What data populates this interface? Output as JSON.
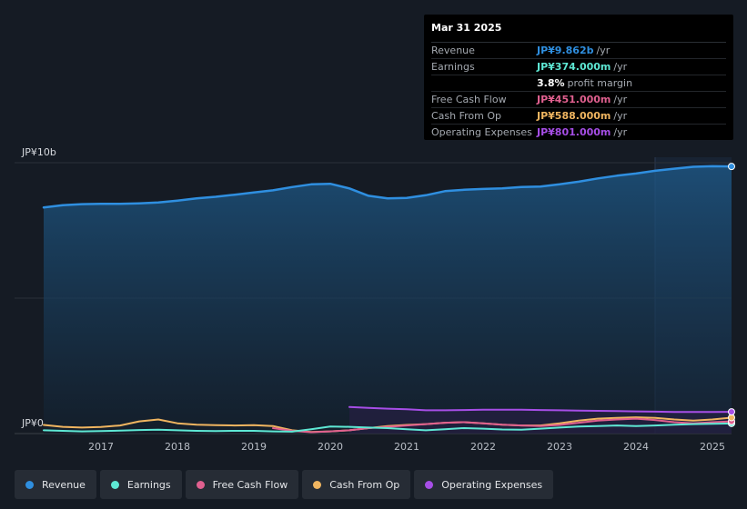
{
  "tooltip": {
    "date": "Mar 31 2025",
    "rows": [
      {
        "label": "Revenue",
        "value": "JP¥9.862b",
        "unit": "/yr",
        "color": "#2f8fe0"
      },
      {
        "label": "Earnings",
        "value": "JP¥374.000m",
        "unit": "/yr",
        "color": "#5ee8d4"
      },
      {
        "label": "",
        "value": "3.8%",
        "unit": "profit margin",
        "color": "#ffffff"
      },
      {
        "label": "Free Cash Flow",
        "value": "JP¥451.000m",
        "unit": "/yr",
        "color": "#e0608f"
      },
      {
        "label": "Cash From Op",
        "value": "JP¥588.000m",
        "unit": "/yr",
        "color": "#f0b560"
      },
      {
        "label": "Operating Expenses",
        "value": "JP¥801.000m",
        "unit": "/yr",
        "color": "#a64ee6"
      }
    ]
  },
  "legend": [
    {
      "label": "Revenue",
      "color": "#2f8fe0"
    },
    {
      "label": "Earnings",
      "color": "#5ee8d4"
    },
    {
      "label": "Free Cash Flow",
      "color": "#e0608f"
    },
    {
      "label": "Cash From Op",
      "color": "#f0b560"
    },
    {
      "label": "Operating Expenses",
      "color": "#a64ee6"
    }
  ],
  "chart_data": {
    "type": "area",
    "y_unit": "JP¥ billions",
    "ylim": [
      0,
      10
    ],
    "y_tick_labels": [
      {
        "value": 10,
        "label": "JP¥10b"
      },
      {
        "value": 0,
        "label": "JP¥0"
      }
    ],
    "xlim": [
      2016.25,
      2025.25
    ],
    "x_tick_labels": [
      "2017",
      "2018",
      "2019",
      "2020",
      "2021",
      "2022",
      "2023",
      "2024",
      "2025"
    ],
    "x_ticks": [
      2017,
      2018,
      2019,
      2020,
      2021,
      2022,
      2023,
      2024,
      2025
    ],
    "forecast_start": 2024.25,
    "series": [
      {
        "name": "Revenue",
        "color": "#2f8fe0",
        "fill": true,
        "x": [
          2016.25,
          2016.5,
          2016.75,
          2017.0,
          2017.25,
          2017.5,
          2017.75,
          2018.0,
          2018.25,
          2018.5,
          2018.75,
          2019.0,
          2019.25,
          2019.5,
          2019.75,
          2020.0,
          2020.25,
          2020.5,
          2020.75,
          2021.0,
          2021.25,
          2021.5,
          2021.75,
          2022.0,
          2022.25,
          2022.5,
          2022.75,
          2023.0,
          2023.25,
          2023.5,
          2023.75,
          2024.0,
          2024.25,
          2024.5,
          2024.75,
          2025.0,
          2025.25
        ],
        "y": [
          8.35,
          8.43,
          8.47,
          8.48,
          8.48,
          8.5,
          8.53,
          8.6,
          8.68,
          8.74,
          8.82,
          8.9,
          8.98,
          9.1,
          9.2,
          9.22,
          9.05,
          8.78,
          8.68,
          8.7,
          8.8,
          8.95,
          9.0,
          9.03,
          9.05,
          9.1,
          9.12,
          9.2,
          9.3,
          9.42,
          9.52,
          9.6,
          9.7,
          9.78,
          9.85,
          9.87,
          9.862
        ]
      },
      {
        "name": "Earnings",
        "color": "#5ee8d4",
        "fill": false,
        "x": [
          2016.25,
          2016.5,
          2016.75,
          2017.0,
          2017.25,
          2017.5,
          2017.75,
          2018.0,
          2018.25,
          2018.5,
          2018.75,
          2019.0,
          2019.25,
          2019.5,
          2019.75,
          2020.0,
          2020.25,
          2020.5,
          2020.75,
          2021.0,
          2021.25,
          2021.5,
          2021.75,
          2022.0,
          2022.25,
          2022.5,
          2022.75,
          2023.0,
          2023.25,
          2023.5,
          2023.75,
          2024.0,
          2024.25,
          2024.5,
          2024.75,
          2025.0,
          2025.25
        ],
        "y": [
          0.12,
          0.1,
          0.08,
          0.09,
          0.11,
          0.13,
          0.14,
          0.12,
          0.1,
          0.09,
          0.1,
          0.1,
          0.08,
          0.07,
          0.16,
          0.26,
          0.25,
          0.22,
          0.2,
          0.16,
          0.12,
          0.16,
          0.2,
          0.18,
          0.15,
          0.14,
          0.18,
          0.22,
          0.26,
          0.28,
          0.3,
          0.28,
          0.3,
          0.33,
          0.35,
          0.36,
          0.374
        ]
      },
      {
        "name": "Free Cash Flow",
        "color": "#e0608f",
        "fill": false,
        "x": [
          2019.25,
          2019.5,
          2019.75,
          2020.0,
          2020.25,
          2020.5,
          2020.75,
          2021.0,
          2021.25,
          2021.5,
          2021.75,
          2022.0,
          2022.25,
          2022.5,
          2022.75,
          2023.0,
          2023.25,
          2023.5,
          2023.75,
          2024.0,
          2024.25,
          2024.5,
          2024.75,
          2025.0,
          2025.25
        ],
        "y": [
          0.2,
          0.1,
          0.05,
          0.08,
          0.12,
          0.2,
          0.25,
          0.3,
          0.35,
          0.4,
          0.42,
          0.38,
          0.33,
          0.3,
          0.28,
          0.32,
          0.4,
          0.48,
          0.52,
          0.55,
          0.5,
          0.42,
          0.38,
          0.42,
          0.451
        ]
      },
      {
        "name": "Cash From Op",
        "color": "#f0b560",
        "fill": false,
        "x": [
          2016.25,
          2016.5,
          2016.75,
          2017.0,
          2017.25,
          2017.5,
          2017.75,
          2018.0,
          2018.25,
          2018.5,
          2018.75,
          2019.0,
          2019.25,
          2019.5,
          2019.75,
          2020.0,
          2020.25,
          2020.5,
          2020.75,
          2021.0,
          2021.25,
          2021.5,
          2021.75,
          2022.0,
          2022.25,
          2022.5,
          2022.75,
          2023.0,
          2023.25,
          2023.5,
          2023.75,
          2024.0,
          2024.25,
          2024.5,
          2024.75,
          2025.0,
          2025.25
        ],
        "y": [
          0.32,
          0.25,
          0.22,
          0.24,
          0.3,
          0.45,
          0.52,
          0.38,
          0.33,
          0.31,
          0.3,
          0.31,
          0.28,
          0.12,
          0.06,
          0.08,
          0.12,
          0.2,
          0.28,
          0.32,
          0.35,
          0.4,
          0.42,
          0.38,
          0.33,
          0.3,
          0.3,
          0.38,
          0.48,
          0.55,
          0.58,
          0.6,
          0.58,
          0.52,
          0.48,
          0.52,
          0.588
        ]
      },
      {
        "name": "Operating Expenses",
        "color": "#a64ee6",
        "fill": true,
        "x": [
          2020.25,
          2020.5,
          2020.75,
          2021.0,
          2021.25,
          2021.5,
          2021.75,
          2022.0,
          2022.25,
          2022.5,
          2022.75,
          2023.0,
          2023.25,
          2023.5,
          2023.75,
          2024.0,
          2024.25,
          2024.5,
          2024.75,
          2025.0,
          2025.25
        ],
        "y": [
          0.98,
          0.95,
          0.92,
          0.9,
          0.86,
          0.86,
          0.87,
          0.88,
          0.88,
          0.88,
          0.87,
          0.86,
          0.85,
          0.84,
          0.83,
          0.82,
          0.81,
          0.8,
          0.8,
          0.8,
          0.801
        ]
      }
    ]
  }
}
